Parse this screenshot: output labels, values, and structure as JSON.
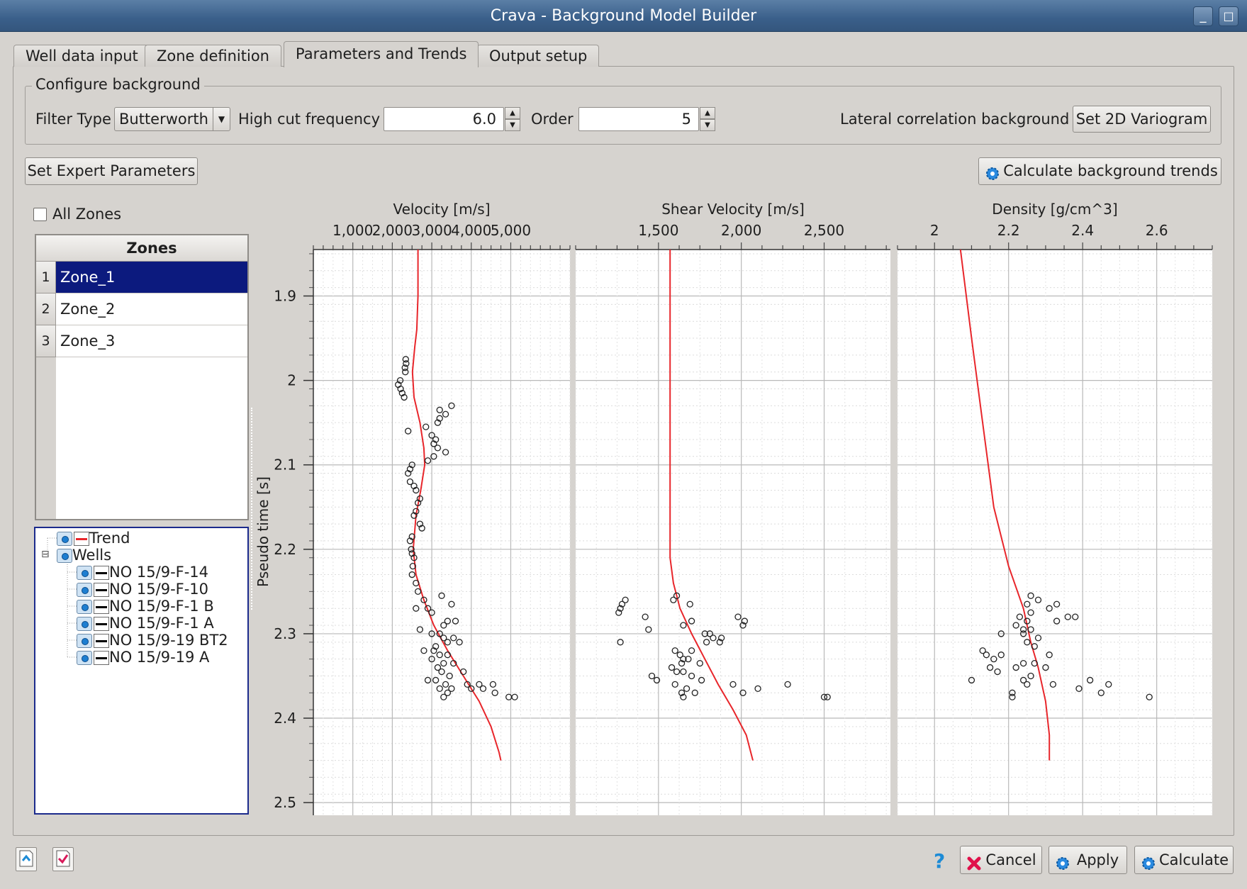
{
  "window": {
    "title": "Crava - Background Model Builder",
    "minimize_glyph": "_",
    "maximize_glyph": "□"
  },
  "tabs": [
    {
      "label": "Well data input"
    },
    {
      "label": "Zone definition"
    },
    {
      "label": "Parameters and Trends",
      "active": true
    },
    {
      "label": "Output setup"
    }
  ],
  "configure": {
    "group_title": "Configure background",
    "filter_type_label": "Filter Type",
    "filter_type_value": "Butterworth",
    "high_cut_label": "High cut frequency",
    "high_cut_value": "6.0",
    "order_label": "Order",
    "order_value": "5",
    "lateral_label": "Lateral correlation background",
    "variogram_button": "Set 2D Variogram"
  },
  "expert_button": "Set Expert Parameters",
  "calc_trends_button": "Calculate background trends",
  "all_zones_label": "All Zones",
  "zones": {
    "header": "Zones",
    "rows": [
      {
        "num": "1",
        "name": "Zone_1",
        "selected": true
      },
      {
        "num": "2",
        "name": "Zone_2"
      },
      {
        "num": "3",
        "name": "Zone_3"
      }
    ]
  },
  "tree": {
    "trend_label": "Trend",
    "wells_label": "Wells",
    "wells": [
      "NO 15/9-F-14",
      "NO 15/9-F-10",
      "NO 15/9-F-1 B",
      "NO 15/9-F-1 A",
      "NO 15/9-19 BT2",
      "NO 15/9-19 A"
    ],
    "collapse_glyph": "⊟"
  },
  "bottom": {
    "help_glyph": "?",
    "cancel": "Cancel",
    "apply": "Apply",
    "calculate": "Calculate"
  },
  "colors": {
    "trend": "#e8262b",
    "points": "#222222",
    "selection": "#0c1a7e"
  },
  "chart_data": {
    "type": "scatter",
    "ylabel": "Pseudo time [s]",
    "ylim": [
      1.845,
      2.515
    ],
    "yticks": [
      "1.9",
      "2",
      "2.1",
      "2.2",
      "2.3",
      "2.4",
      "2.5"
    ],
    "panels": [
      {
        "xlabel": "Velocity [m/s]",
        "xlim": [
          0,
          6500
        ],
        "xticks": [
          "1,000",
          "2,000",
          "3,000",
          "4,000",
          "5,000"
        ],
        "trend": [
          [
            2650,
            1.845
          ],
          [
            2650,
            1.9
          ],
          [
            2620,
            1.94
          ],
          [
            2570,
            1.96
          ],
          [
            2510,
            1.99
          ],
          [
            2550,
            2.02
          ],
          [
            2700,
            2.05
          ],
          [
            2800,
            2.08
          ],
          [
            2820,
            2.1
          ],
          [
            2720,
            2.13
          ],
          [
            2600,
            2.16
          ],
          [
            2530,
            2.2
          ],
          [
            2600,
            2.23
          ],
          [
            2800,
            2.26
          ],
          [
            3050,
            2.29
          ],
          [
            3400,
            2.32
          ],
          [
            3800,
            2.35
          ],
          [
            4200,
            2.38
          ],
          [
            4500,
            2.41
          ],
          [
            4700,
            2.44
          ],
          [
            4750,
            2.45
          ]
        ],
        "points": [
          [
            2350,
            1.98
          ],
          [
            2340,
            1.975
          ],
          [
            2320,
            1.985
          ],
          [
            2330,
            1.99
          ],
          [
            2200,
            2.0
          ],
          [
            2150,
            2.005
          ],
          [
            2210,
            2.01
          ],
          [
            2250,
            2.015
          ],
          [
            2300,
            2.02
          ],
          [
            3200,
            2.035
          ],
          [
            3500,
            2.03
          ],
          [
            3350,
            2.04
          ],
          [
            3200,
            2.045
          ],
          [
            3150,
            2.05
          ],
          [
            2850,
            2.055
          ],
          [
            2400,
            2.06
          ],
          [
            3000,
            2.065
          ],
          [
            3100,
            2.07
          ],
          [
            3050,
            2.075
          ],
          [
            3150,
            2.08
          ],
          [
            3350,
            2.085
          ],
          [
            3050,
            2.09
          ],
          [
            2900,
            2.095
          ],
          [
            2450,
            2.105
          ],
          [
            2500,
            2.1
          ],
          [
            2400,
            2.11
          ],
          [
            2450,
            2.12
          ],
          [
            2550,
            2.125
          ],
          [
            2600,
            2.13
          ],
          [
            2700,
            2.14
          ],
          [
            2650,
            2.145
          ],
          [
            2600,
            2.155
          ],
          [
            2550,
            2.16
          ],
          [
            2700,
            2.17
          ],
          [
            2750,
            2.175
          ],
          [
            2500,
            2.185
          ],
          [
            2450,
            2.19
          ],
          [
            2480,
            2.2
          ],
          [
            2500,
            2.205
          ],
          [
            2550,
            2.21
          ],
          [
            2520,
            2.22
          ],
          [
            2500,
            2.23
          ],
          [
            2600,
            2.24
          ],
          [
            2650,
            2.25
          ],
          [
            3250,
            2.255
          ],
          [
            2800,
            2.26
          ],
          [
            3500,
            2.265
          ],
          [
            2900,
            2.27
          ],
          [
            2600,
            2.27
          ],
          [
            3000,
            2.275
          ],
          [
            3400,
            2.285
          ],
          [
            3600,
            2.285
          ],
          [
            3300,
            2.29
          ],
          [
            2700,
            2.295
          ],
          [
            3000,
            2.3
          ],
          [
            3200,
            2.3
          ],
          [
            3300,
            2.305
          ],
          [
            3550,
            2.305
          ],
          [
            3400,
            2.31
          ],
          [
            3100,
            2.315
          ],
          [
            3700,
            2.31
          ],
          [
            2800,
            2.32
          ],
          [
            3050,
            2.32
          ],
          [
            3200,
            2.325
          ],
          [
            3400,
            2.325
          ],
          [
            3000,
            2.33
          ],
          [
            3300,
            2.335
          ],
          [
            3550,
            2.335
          ],
          [
            3150,
            2.34
          ],
          [
            3250,
            2.345
          ],
          [
            3800,
            2.345
          ],
          [
            3450,
            2.35
          ],
          [
            2900,
            2.355
          ],
          [
            3100,
            2.355
          ],
          [
            3350,
            2.36
          ],
          [
            3900,
            2.36
          ],
          [
            4200,
            2.36
          ],
          [
            4550,
            2.36
          ],
          [
            3200,
            2.365
          ],
          [
            3500,
            2.365
          ],
          [
            4000,
            2.365
          ],
          [
            4300,
            2.365
          ],
          [
            3400,
            2.37
          ],
          [
            4600,
            2.37
          ],
          [
            3300,
            2.375
          ],
          [
            4950,
            2.375
          ],
          [
            5100,
            2.375
          ]
        ]
      },
      {
        "xlabel": "Shear Velocity [m/s]",
        "xlim": [
          1000,
          2900
        ],
        "xticks": [
          "1,500",
          "2,000",
          "2,500"
        ],
        "trend": [
          [
            1570,
            1.845
          ],
          [
            1570,
            2.0
          ],
          [
            1570,
            2.15
          ],
          [
            1570,
            2.21
          ],
          [
            1590,
            2.24
          ],
          [
            1630,
            2.27
          ],
          [
            1700,
            2.3
          ],
          [
            1780,
            2.33
          ],
          [
            1860,
            2.36
          ],
          [
            1950,
            2.39
          ],
          [
            2030,
            2.42
          ],
          [
            2070,
            2.45
          ]
        ],
        "points": [
          [
            1300,
            2.26
          ],
          [
            1280,
            2.265
          ],
          [
            1270,
            2.27
          ],
          [
            1260,
            2.275
          ],
          [
            1610,
            2.255
          ],
          [
            1590,
            2.26
          ],
          [
            1690,
            2.265
          ],
          [
            1420,
            2.28
          ],
          [
            1700,
            2.285
          ],
          [
            1980,
            2.28
          ],
          [
            2020,
            2.285
          ],
          [
            2010,
            2.29
          ],
          [
            1440,
            2.295
          ],
          [
            1650,
            2.29
          ],
          [
            1780,
            2.3
          ],
          [
            1810,
            2.3
          ],
          [
            1830,
            2.305
          ],
          [
            1790,
            2.31
          ],
          [
            1880,
            2.305
          ],
          [
            1870,
            2.31
          ],
          [
            1270,
            2.31
          ],
          [
            1600,
            2.32
          ],
          [
            1700,
            2.32
          ],
          [
            1630,
            2.325
          ],
          [
            1650,
            2.33
          ],
          [
            1680,
            2.33
          ],
          [
            1750,
            2.335
          ],
          [
            1640,
            2.335
          ],
          [
            1580,
            2.34
          ],
          [
            1610,
            2.345
          ],
          [
            1650,
            2.345
          ],
          [
            1700,
            2.35
          ],
          [
            1460,
            2.35
          ],
          [
            1490,
            2.355
          ],
          [
            1760,
            2.355
          ],
          [
            1950,
            2.36
          ],
          [
            1600,
            2.36
          ],
          [
            1670,
            2.365
          ],
          [
            2100,
            2.365
          ],
          [
            2280,
            2.36
          ],
          [
            1640,
            2.37
          ],
          [
            1720,
            2.37
          ],
          [
            1650,
            2.375
          ],
          [
            2010,
            2.37
          ],
          [
            2500,
            2.375
          ],
          [
            2520,
            2.375
          ]
        ]
      },
      {
        "xlabel": "Density [g/cm^3]",
        "xlim": [
          1.9,
          2.75
        ],
        "xticks": [
          "2",
          "2.2",
          "2.4",
          "2.6"
        ],
        "trend": [
          [
            2.07,
            1.845
          ],
          [
            2.1,
            1.95
          ],
          [
            2.13,
            2.05
          ],
          [
            2.16,
            2.15
          ],
          [
            2.2,
            2.22
          ],
          [
            2.24,
            2.27
          ],
          [
            2.26,
            2.31
          ],
          [
            2.28,
            2.34
          ],
          [
            2.3,
            2.38
          ],
          [
            2.31,
            2.42
          ],
          [
            2.31,
            2.45
          ]
        ],
        "points": [
          [
            2.26,
            2.255
          ],
          [
            2.28,
            2.26
          ],
          [
            2.25,
            2.265
          ],
          [
            2.33,
            2.265
          ],
          [
            2.31,
            2.27
          ],
          [
            2.26,
            2.275
          ],
          [
            2.36,
            2.28
          ],
          [
            2.38,
            2.28
          ],
          [
            2.33,
            2.285
          ],
          [
            2.23,
            2.28
          ],
          [
            2.25,
            2.285
          ],
          [
            2.22,
            2.29
          ],
          [
            2.24,
            2.295
          ],
          [
            2.26,
            2.295
          ],
          [
            2.18,
            2.3
          ],
          [
            2.24,
            2.3
          ],
          [
            2.28,
            2.305
          ],
          [
            2.25,
            2.31
          ],
          [
            2.27,
            2.315
          ],
          [
            2.13,
            2.32
          ],
          [
            2.14,
            2.325
          ],
          [
            2.18,
            2.325
          ],
          [
            2.31,
            2.325
          ],
          [
            2.16,
            2.33
          ],
          [
            2.24,
            2.335
          ],
          [
            2.27,
            2.335
          ],
          [
            2.15,
            2.34
          ],
          [
            2.22,
            2.34
          ],
          [
            2.3,
            2.34
          ],
          [
            2.17,
            2.345
          ],
          [
            2.26,
            2.35
          ],
          [
            2.24,
            2.355
          ],
          [
            2.25,
            2.36
          ],
          [
            2.1,
            2.355
          ],
          [
            2.32,
            2.36
          ],
          [
            2.42,
            2.355
          ],
          [
            2.47,
            2.36
          ],
          [
            2.39,
            2.365
          ],
          [
            2.45,
            2.37
          ],
          [
            2.21,
            2.37
          ],
          [
            2.21,
            2.375
          ],
          [
            2.58,
            2.375
          ]
        ]
      }
    ]
  }
}
